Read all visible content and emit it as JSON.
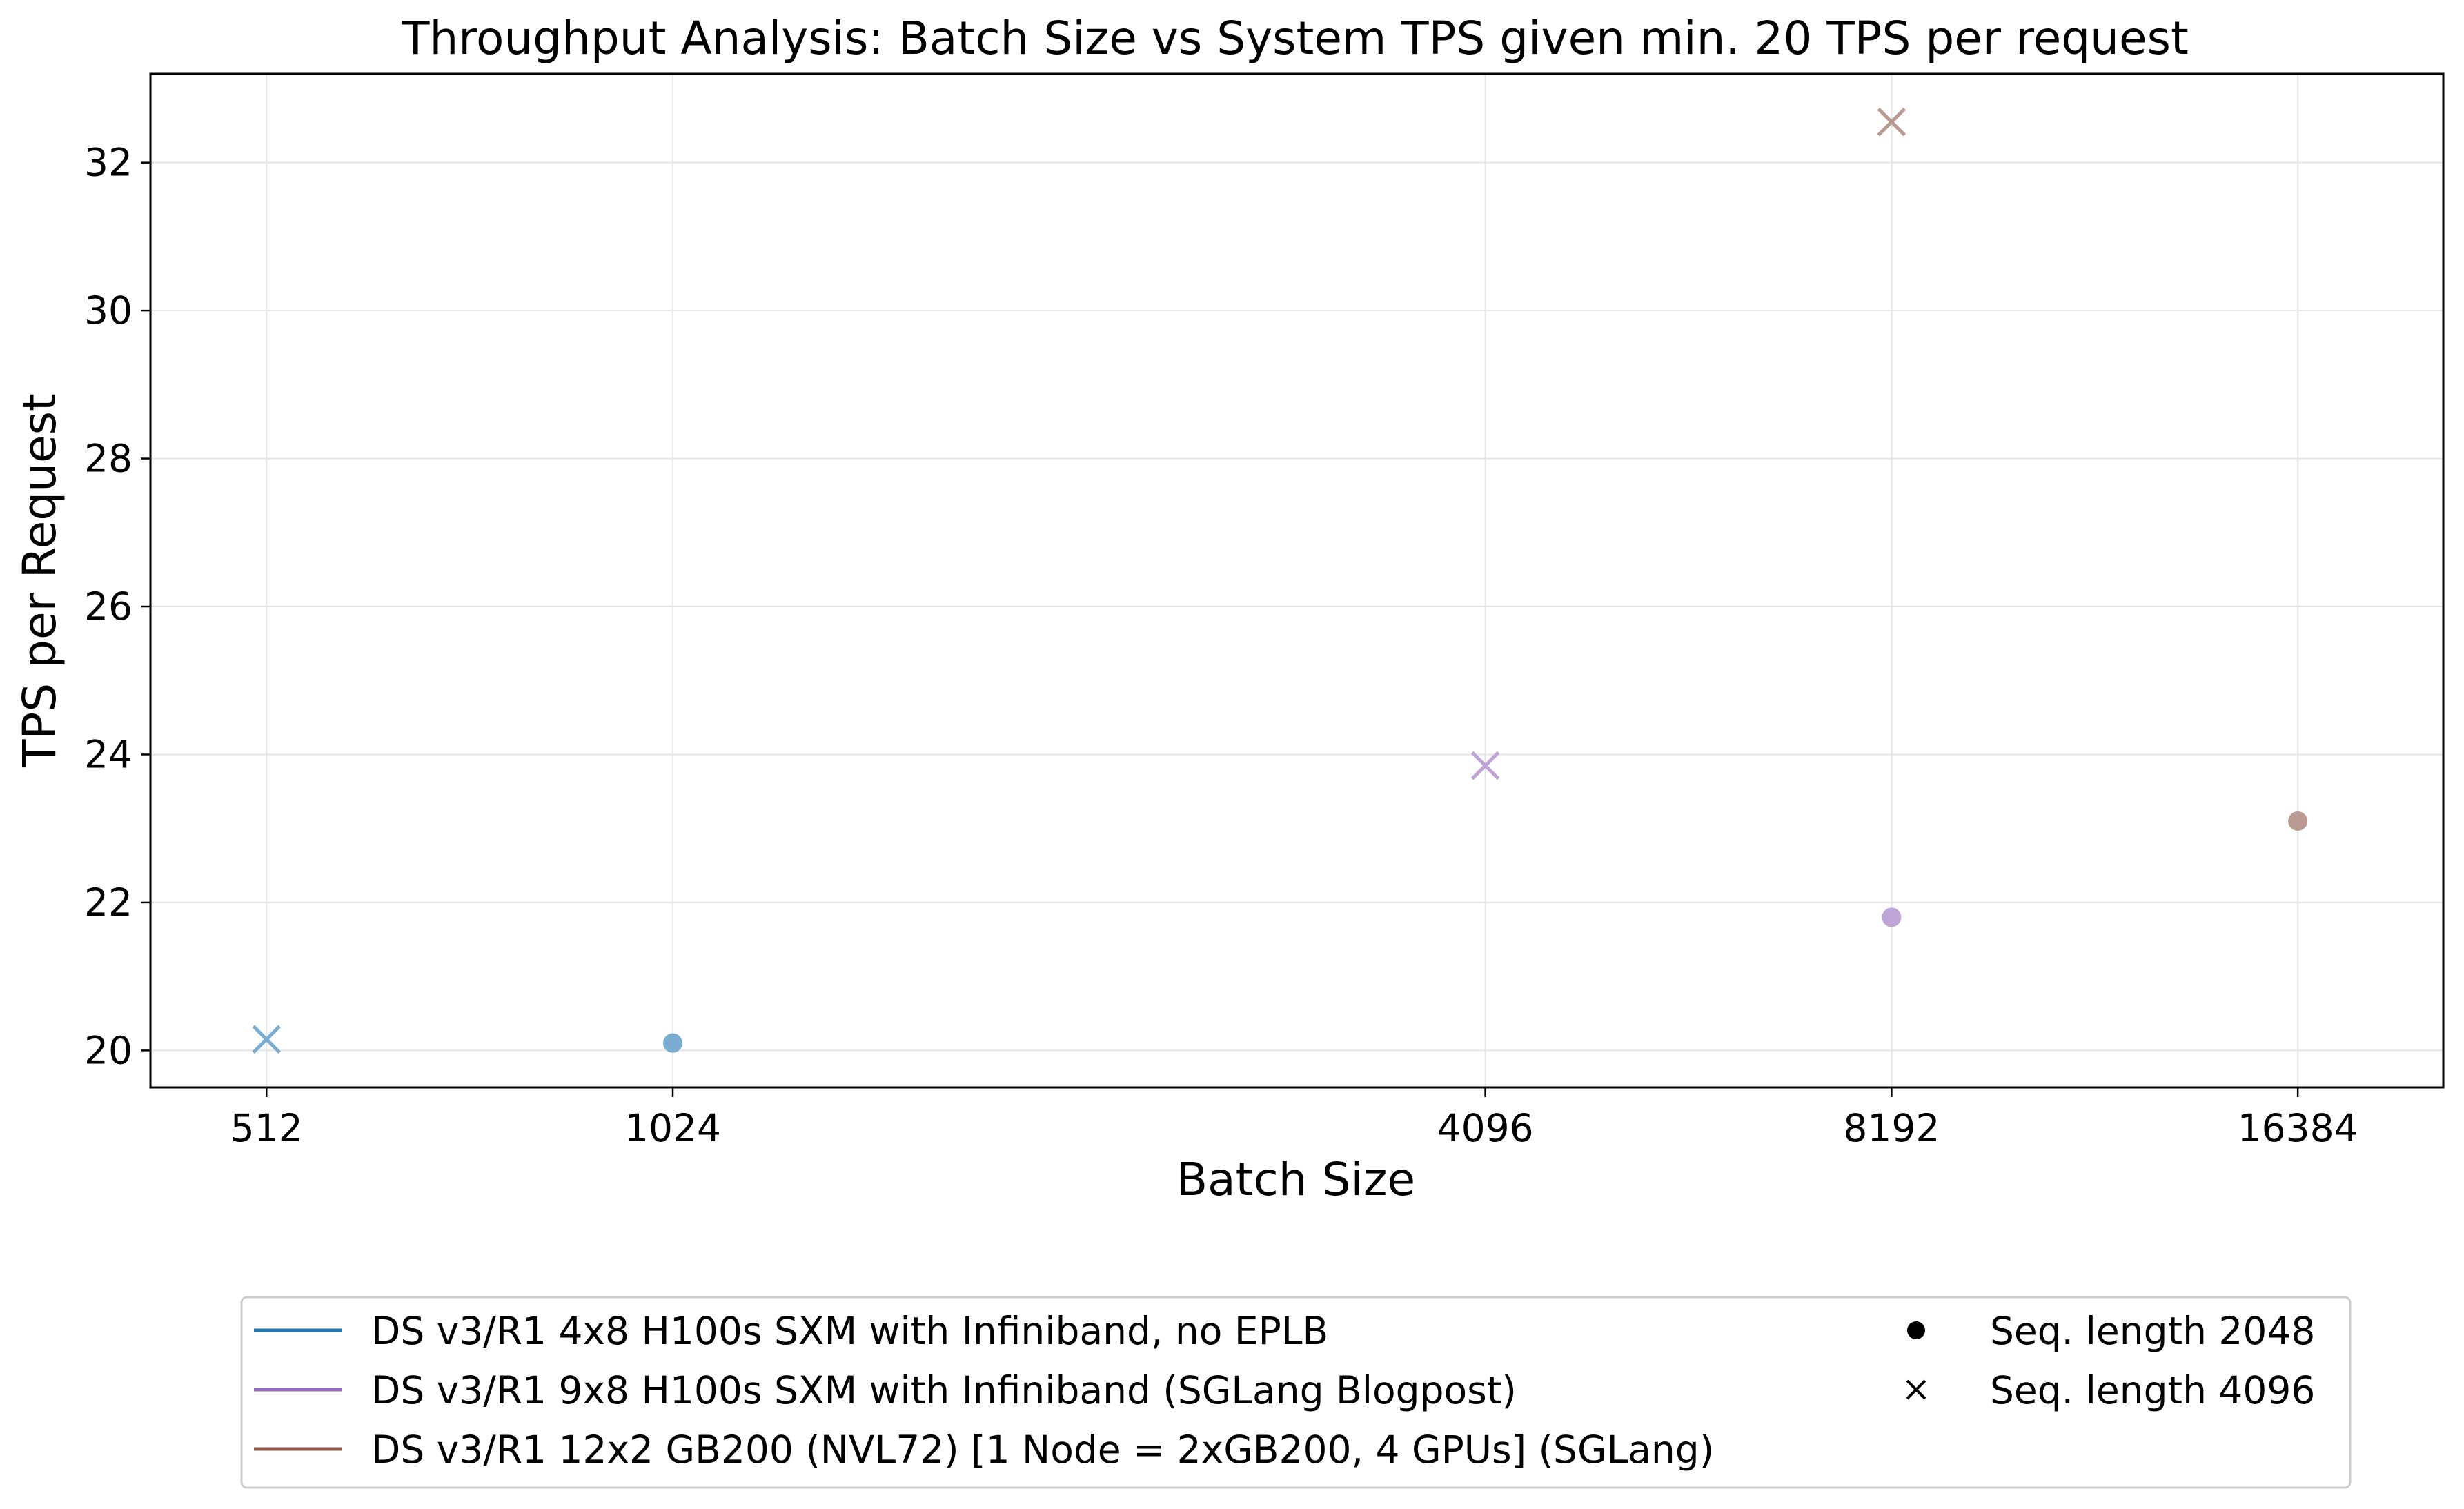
{
  "chart_data": {
    "type": "scatter",
    "title": "Throughput Analysis: Batch Size vs System TPS given min. 20 TPS per request",
    "xlabel": "Batch Size",
    "ylabel": "TPS per Request",
    "x_scale": "log2",
    "x_ticks": [
      512,
      1024,
      4096,
      8192,
      16384
    ],
    "x_tick_labels": [
      "512",
      "1024",
      "4096",
      "8192",
      "16384"
    ],
    "xlim": [
      420,
      21000
    ],
    "ylim": [
      19.5,
      33.2
    ],
    "y_ticks": [
      20,
      22,
      24,
      26,
      28,
      30,
      32
    ],
    "y_tick_labels": [
      "20",
      "22",
      "24",
      "26",
      "28",
      "30",
      "32"
    ],
    "grid": true,
    "legend_position": "bottom",
    "series": [
      {
        "name": "DS v3/R1 4x8 H100s SXM with Infiniband, no EPLB",
        "color": "#1f77b4",
        "points": [
          {
            "x": 1024,
            "y": 20.1,
            "marker": "circle"
          },
          {
            "x": 512,
            "y": 20.15,
            "marker": "x"
          }
        ]
      },
      {
        "name": "DS v3/R1 9x8 H100s SXM with Infiniband (SGLang Blogpost)",
        "color": "#9467bd",
        "points": [
          {
            "x": 8192,
            "y": 21.8,
            "marker": "circle"
          },
          {
            "x": 4096,
            "y": 23.85,
            "marker": "x"
          }
        ]
      },
      {
        "name": "DS v3/R1 12x2 GB200 (NVL72) [1 Node = 2xGB200, 4 GPUs] (SGLang)",
        "color": "#8c564b",
        "points": [
          {
            "x": 16384,
            "y": 23.1,
            "marker": "circle"
          },
          {
            "x": 8192,
            "y": 32.55,
            "marker": "x"
          }
        ]
      }
    ],
    "marker_legend": [
      {
        "label": "Seq. length 2048",
        "marker": "circle"
      },
      {
        "label": "Seq. length 4096",
        "marker": "x"
      }
    ]
  }
}
